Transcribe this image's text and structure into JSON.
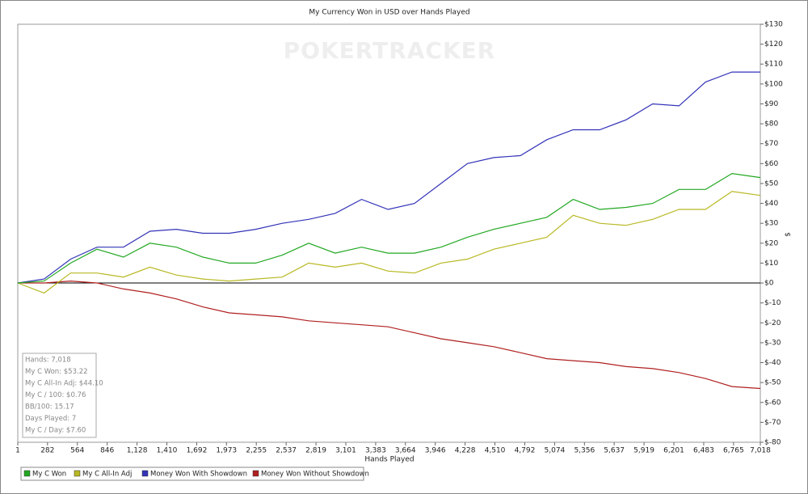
{
  "chart_data": {
    "type": "line",
    "title": "My Currency Won in USD over Hands Played",
    "watermark": "POKERTRACKER",
    "x_label": "Hands Played",
    "y_label": "$",
    "x": [
      1,
      250,
      500,
      750,
      1000,
      1250,
      1500,
      1750,
      2000,
      2250,
      2500,
      2750,
      3000,
      3250,
      3500,
      3750,
      4000,
      4250,
      4500,
      4750,
      5000,
      5250,
      5500,
      5750,
      6000,
      6250,
      6500,
      6750,
      7018
    ],
    "series": [
      {
        "name": "My C Won",
        "color": "#22a822",
        "values": [
          0,
          1,
          10,
          17,
          13,
          20,
          18,
          13,
          10,
          10,
          14,
          20,
          15,
          18,
          15,
          15,
          18,
          23,
          27,
          30,
          33,
          42,
          37,
          38,
          40,
          47,
          47,
          55,
          53
        ]
      },
      {
        "name": "My C All-In Adj",
        "color": "#b8b824",
        "values": [
          0,
          -5,
          5,
          5,
          3,
          8,
          4,
          2,
          1,
          2,
          3,
          10,
          8,
          10,
          6,
          5,
          10,
          12,
          17,
          20,
          23,
          34,
          30,
          29,
          32,
          37,
          37,
          46,
          44
        ]
      },
      {
        "name": "Money Won With Showdown",
        "color": "#3333b8",
        "values": [
          0,
          2,
          12,
          18,
          18,
          26,
          27,
          25,
          25,
          27,
          30,
          32,
          35,
          42,
          37,
          40,
          50,
          60,
          63,
          64,
          72,
          77,
          77,
          82,
          90,
          89,
          101,
          106,
          106
        ]
      },
      {
        "name": "Money Won Without Showdown",
        "color": "#b02020",
        "values": [
          0,
          0,
          1,
          0,
          -3,
          -5,
          -8,
          -12,
          -15,
          -16,
          -17,
          -19,
          -20,
          -21,
          -22,
          -25,
          -28,
          -30,
          -32,
          -35,
          -38,
          -39,
          -40,
          -42,
          -43,
          -45,
          -48,
          -52,
          -53
        ]
      }
    ],
    "xlim": [
      1,
      7018
    ],
    "xticks": [
      1,
      282,
      564,
      846,
      {
        "value": 1128,
        "label": "1,128"
      },
      {
        "value": 1410,
        "label": "1,410"
      },
      {
        "value": 1692,
        "label": "1,692"
      },
      {
        "value": 1973,
        "label": "1,973"
      },
      {
        "value": 2255,
        "label": "2,255"
      },
      {
        "value": 2537,
        "label": "2,537"
      },
      {
        "value": 2819,
        "label": "2,819"
      },
      {
        "value": 3101,
        "label": "3,101"
      },
      {
        "value": 3383,
        "label": "3,383"
      },
      {
        "value": 3664,
        "label": "3,664"
      },
      {
        "value": 3946,
        "label": "3,946"
      },
      {
        "value": 4228,
        "label": "4,228"
      },
      {
        "value": 4510,
        "label": "4,510"
      },
      {
        "value": 4792,
        "label": "4,792"
      },
      {
        "value": 5074,
        "label": "5,074"
      },
      {
        "value": 5356,
        "label": "5,356"
      },
      {
        "value": 5637,
        "label": "5,637"
      },
      {
        "value": 5919,
        "label": "5,919"
      },
      {
        "value": 6201,
        "label": "6,201"
      },
      {
        "value": 6483,
        "label": "6,483"
      },
      {
        "value": 6765,
        "label": "6,765"
      },
      {
        "value": 7018,
        "label": "7,018"
      }
    ],
    "ylim": [
      -80,
      130
    ],
    "yticks": [
      {
        "value": -80,
        "label": "$-80"
      },
      {
        "value": -70,
        "label": "$-70"
      },
      {
        "value": -60,
        "label": "$-60"
      },
      {
        "value": -50,
        "label": "$-50"
      },
      {
        "value": -40,
        "label": "$-40"
      },
      {
        "value": -30,
        "label": "$-30"
      },
      {
        "value": -20,
        "label": "$-20"
      },
      {
        "value": -10,
        "label": "$-10"
      },
      {
        "value": 0,
        "label": "$0"
      },
      {
        "value": 10,
        "label": "$10"
      },
      {
        "value": 20,
        "label": "$20"
      },
      {
        "value": 30,
        "label": "$30"
      },
      {
        "value": 40,
        "label": "$40"
      },
      {
        "value": 50,
        "label": "$50"
      },
      {
        "value": 60,
        "label": "$60"
      },
      {
        "value": 70,
        "label": "$70"
      },
      {
        "value": 80,
        "label": "$80"
      },
      {
        "value": 90,
        "label": "$90"
      },
      {
        "value": 100,
        "label": "$100"
      },
      {
        "value": 110,
        "label": "$110"
      },
      {
        "value": 120,
        "label": "$120"
      },
      {
        "value": 130,
        "label": "$130"
      }
    ],
    "grid": false,
    "legend": "bottom",
    "stats": [
      "Hands: 7,018",
      "My C Won: $53.22",
      "My C All-In Adj: $44.10",
      "My C / 100: $0.76",
      "BB/100: 15.17",
      "Days Played: 7",
      "My C / Day: $7.60"
    ]
  }
}
